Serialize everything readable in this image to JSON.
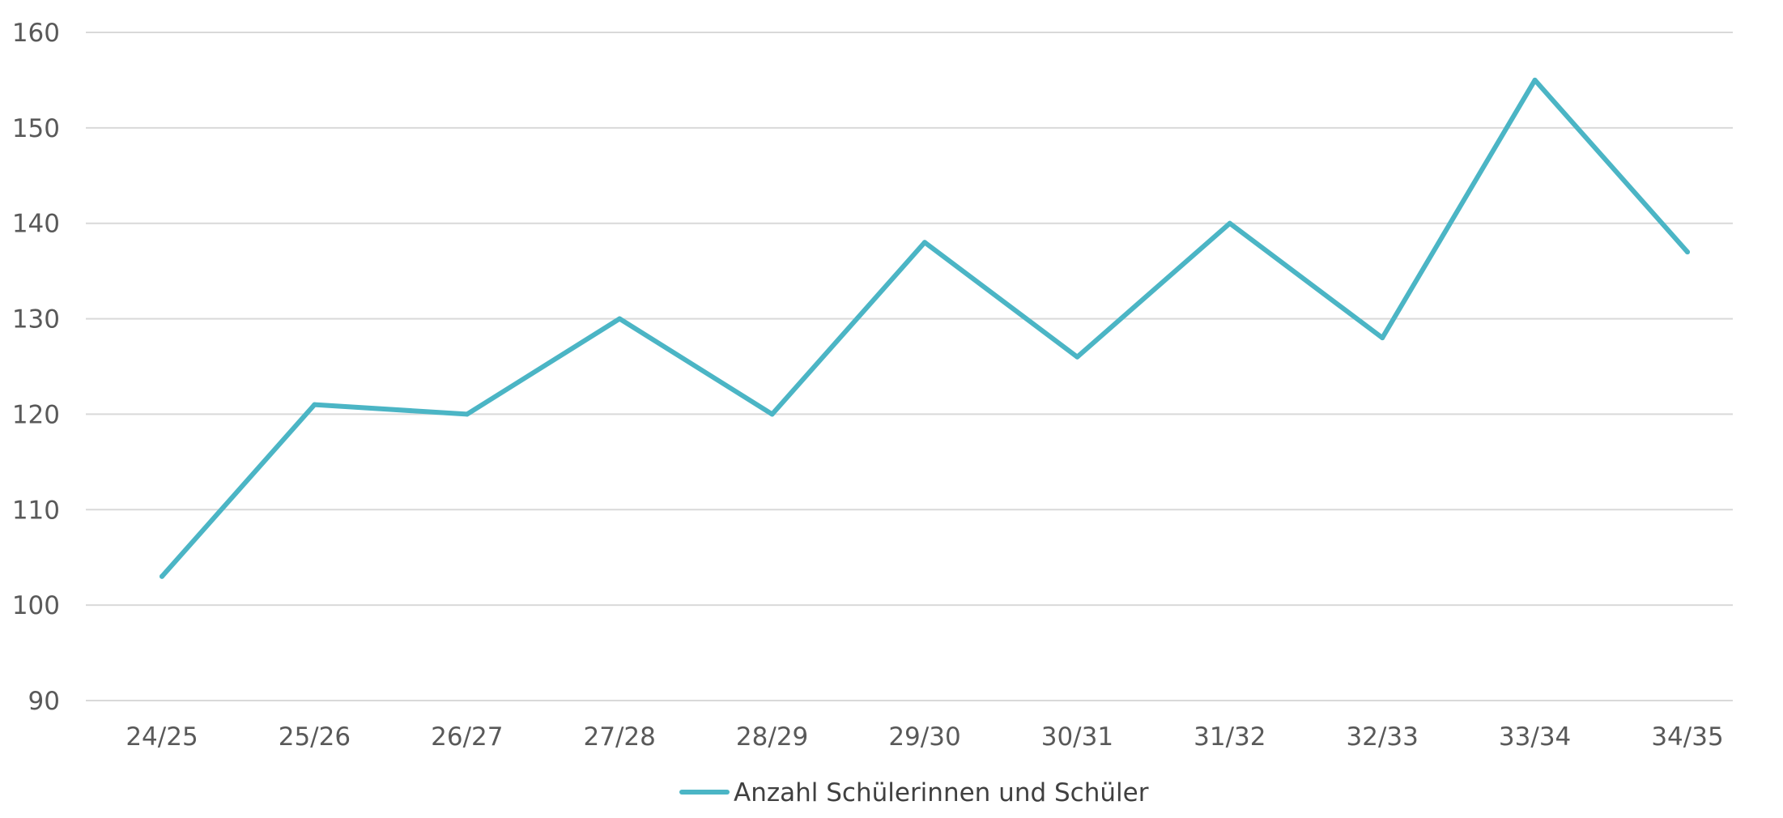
{
  "chart_data": {
    "type": "line",
    "categories": [
      "24/25",
      "25/26",
      "26/27",
      "27/28",
      "28/29",
      "29/30",
      "30/31",
      "31/32",
      "32/33",
      "33/34",
      "34/35"
    ],
    "series": [
      {
        "name": "Anzahl Schülerinnen und Schüler",
        "values": [
          103,
          121,
          120,
          130,
          120,
          138,
          126,
          140,
          128,
          155,
          137
        ],
        "color": "#4bb5c5"
      }
    ],
    "ylim": [
      90,
      160
    ],
    "yticks": [
      90,
      100,
      110,
      120,
      130,
      140,
      150,
      160
    ],
    "grid": true,
    "legend_position": "bottom",
    "title": "",
    "xlabel": "",
    "ylabel": ""
  }
}
